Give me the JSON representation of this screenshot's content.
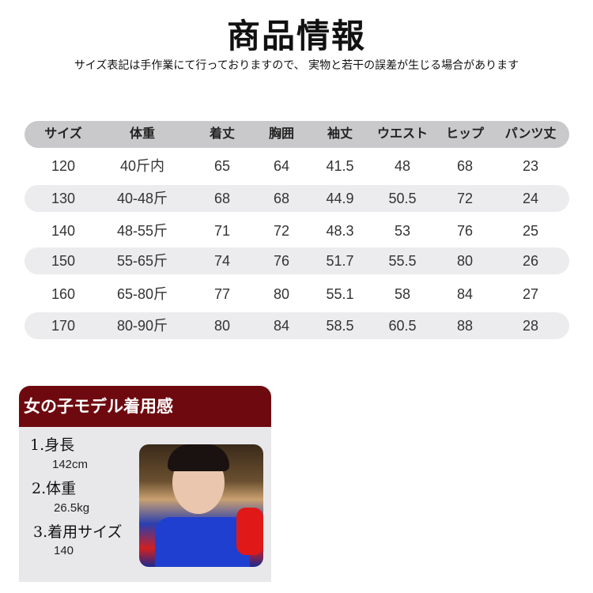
{
  "title": "商品情報",
  "note": "サイズ表記は手作業にて行っておりますので、 実物と若干の誤差が生じる場合があります",
  "table": {
    "headers": [
      "サイズ",
      "体重",
      "着丈",
      "胸囲",
      "袖丈",
      "ウエスト",
      "ヒップ",
      "パンツ丈"
    ],
    "rows": [
      [
        "120",
        "40斤内",
        "65",
        "64",
        "41.5",
        "48",
        "68",
        "23"
      ],
      [
        "130",
        "40-48斤",
        "68",
        "68",
        "44.9",
        "50.5",
        "72",
        "24"
      ],
      [
        "140",
        "48-55斤",
        "71",
        "72",
        "48.3",
        "53",
        "76",
        "25"
      ],
      [
        "150",
        "55-65斤",
        "74",
        "76",
        "51.7",
        "55.5",
        "80",
        "26"
      ],
      [
        "160",
        "65-80斤",
        "77",
        "80",
        "55.1",
        "58",
        "84",
        "27"
      ],
      [
        "170",
        "80-90斤",
        "80",
        "84",
        "58.5",
        "60.5",
        "88",
        "28"
      ]
    ]
  },
  "model": {
    "heading": "女の子モデル着用感",
    "items": [
      {
        "label": "1.身長",
        "value": "142cm"
      },
      {
        "label": "2.体重",
        "value": "26.5kg"
      },
      {
        "label": "3.着用サイズ",
        "value": "140"
      }
    ]
  },
  "colors": {
    "header_bar": "#6e0a0f",
    "table_header": "#c9c9cb",
    "stripe": "#ececee"
  }
}
